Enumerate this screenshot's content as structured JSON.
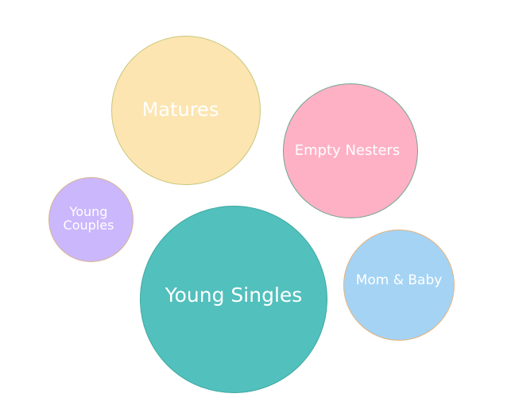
{
  "bubbles": [
    {
      "label": "Matures",
      "fill": "#fce5b1",
      "outline": "#c8c77b"
    },
    {
      "label": "Empty Nesters",
      "fill": "#feb1c5",
      "outline": "#6fa592"
    },
    {
      "label": "Young\nCouples",
      "fill": "#cbb7fc",
      "outline": "#d8b58e"
    },
    {
      "label": "Young Singles",
      "fill": "#52c0bd",
      "outline": "#3fa9a2"
    },
    {
      "label": "Mom & Baby",
      "fill": "#a5d3f4",
      "outline": "#e6b47b"
    }
  ]
}
